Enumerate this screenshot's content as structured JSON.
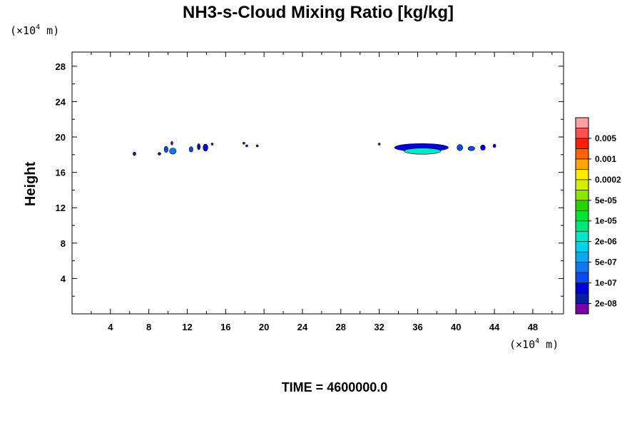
{
  "chart_data": {
    "type": "heatmap",
    "title": "NH3-s-Cloud Mixing Ratio [kg/kg]",
    "ylabel": "Height",
    "xlabel": "",
    "x_unit": {
      "prefix": "(×10",
      "exp": "4",
      "suffix": " m)"
    },
    "y_unit": {
      "prefix": "(×10",
      "exp": "4",
      "suffix": " m)"
    },
    "xlim": [
      0,
      51.2
    ],
    "ylim": [
      0,
      29.6
    ],
    "xticks": [
      4,
      8,
      12,
      16,
      20,
      24,
      28,
      32,
      36,
      40,
      44,
      48
    ],
    "yticks": [
      4,
      8,
      12,
      16,
      20,
      24,
      28
    ],
    "footer": "TIME = 4600000.0",
    "colorbar": {
      "colors": [
        "#7b00a8",
        "#0a1ea0",
        "#0000dc",
        "#0a4cf0",
        "#0f78f0",
        "#0aa8f0",
        "#00d2f0",
        "#00e6c8",
        "#00e678",
        "#00e632",
        "#2bd200",
        "#8ce600",
        "#d2f000",
        "#ffeb00",
        "#ffa500",
        "#ff6400",
        "#ff1e00",
        "#ff5050",
        "#ffa0a0"
      ],
      "labels": [
        "2e-08",
        "1e-07",
        "5e-07",
        "2e-06",
        "1e-05",
        "5e-05",
        "0.0002",
        "0.001",
        "0.005"
      ]
    },
    "cloud_blobs": [
      {
        "x": 6.5,
        "y": 18.1,
        "rx": 0.15,
        "ry": 0.2,
        "level": 1
      },
      {
        "x": 9.1,
        "y": 18.1,
        "rx": 0.15,
        "ry": 0.15,
        "level": 1
      },
      {
        "x": 9.8,
        "y": 18.6,
        "rx": 0.2,
        "ry": 0.35,
        "level": 3
      },
      {
        "x": 10.5,
        "y": 18.4,
        "rx": 0.35,
        "ry": 0.35,
        "level": 4
      },
      {
        "x": 10.4,
        "y": 19.3,
        "rx": 0.05,
        "ry": 0.2,
        "level": 0
      },
      {
        "x": 12.4,
        "y": 18.6,
        "rx": 0.2,
        "ry": 0.3,
        "level": 3
      },
      {
        "x": 13.2,
        "y": 18.9,
        "rx": 0.15,
        "ry": 0.35,
        "level": 2
      },
      {
        "x": 13.9,
        "y": 18.8,
        "rx": 0.25,
        "ry": 0.4,
        "level": 2
      },
      {
        "x": 14.6,
        "y": 19.2,
        "rx": 0.06,
        "ry": 0.08,
        "level": 0
      },
      {
        "x": 17.9,
        "y": 19.3,
        "rx": 0.06,
        "ry": 0.12,
        "level": 0
      },
      {
        "x": 18.2,
        "y": 19.0,
        "rx": 0.05,
        "ry": 0.06,
        "level": 1
      },
      {
        "x": 19.3,
        "y": 19.0,
        "rx": 0.03,
        "ry": 0.04,
        "level": 2
      },
      {
        "x": 32.0,
        "y": 19.2,
        "rx": 0.06,
        "ry": 0.08,
        "level": 0
      },
      {
        "x": 36.4,
        "y": 18.8,
        "rx": 2.8,
        "ry": 0.45,
        "level": 2
      },
      {
        "x": 36.5,
        "y": 18.4,
        "rx": 1.9,
        "ry": 0.35,
        "level": 7
      },
      {
        "x": 40.4,
        "y": 18.8,
        "rx": 0.3,
        "ry": 0.35,
        "level": 3
      },
      {
        "x": 41.6,
        "y": 18.7,
        "rx": 0.35,
        "ry": 0.25,
        "level": 3
      },
      {
        "x": 42.8,
        "y": 18.8,
        "rx": 0.25,
        "ry": 0.3,
        "level": 2
      },
      {
        "x": 44.0,
        "y": 19.0,
        "rx": 0.15,
        "ry": 0.2,
        "level": 2
      }
    ]
  }
}
